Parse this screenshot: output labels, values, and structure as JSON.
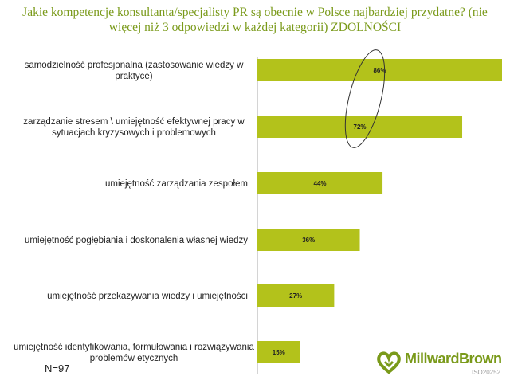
{
  "title": "Jakie kompetencje konsultanta/specjalisty PR są obecnie w Polsce najbardziej przydatne? (nie więcej niż 3 odpowiedzi w każdej kategorii) ZDOLNOŚCI",
  "sample_size": "N=97",
  "brand": {
    "name": "MillwardBrown",
    "iso": "ISO20252"
  },
  "colors": {
    "bar": "#b3c21b",
    "title": "#7a9a1a"
  },
  "chart_data": {
    "type": "bar",
    "orientation": "horizontal",
    "title": "Jakie kompetencje konsultanta/specjalisty PR są obecnie w Polsce najbardziej przydatne? (nie więcej niż 3 odpowiedzi w każdej kategorii) ZDOLNOŚCI",
    "categories": [
      [
        "samodzielność profesjonalna (zastosowanie wiedzy w",
        "praktyce)"
      ],
      [
        "zarządzanie stresem \\ umiejętność efektywnej pracy w",
        "sytuacjach kryzysowych i problemowych"
      ],
      [
        "umiejętność zarządzania zespołem"
      ],
      [
        "umiejętność pogłębiania i doskonalenia własnej wiedzy"
      ],
      [
        "umiejętność przekazywania wiedzy i umiejętności"
      ],
      [
        "umiejętność identyfikowania, formułowania i rozwiązywania",
        "problemów etycznych"
      ]
    ],
    "values": [
      86,
      72,
      44,
      36,
      27,
      15
    ],
    "value_labels": [
      "86%",
      "72%",
      "44%",
      "36%",
      "27%",
      "15%"
    ],
    "unit": "%",
    "xlim": [
      0,
      86
    ],
    "grid": false,
    "highlight": "ellipse around the 86% and 72% labels"
  }
}
